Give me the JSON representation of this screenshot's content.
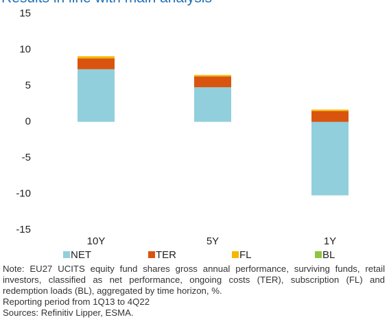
{
  "chart_data": {
    "type": "stacked_bar",
    "title": "Results in line with main analysis",
    "categories": [
      "10Y",
      "5Y",
      "1Y"
    ],
    "series": [
      {
        "name": "NET",
        "color": "#92cfdc",
        "values": [
          7.3,
          4.8,
          -10.2
        ]
      },
      {
        "name": "TER",
        "color": "#d9540f",
        "values": [
          1.5,
          1.5,
          1.5
        ]
      },
      {
        "name": "FL",
        "color": "#f5b800",
        "values": [
          0.3,
          0.2,
          0.2
        ]
      },
      {
        "name": "BL",
        "color": "#8dc63f",
        "values": [
          0,
          0,
          0
        ]
      }
    ],
    "ylim": [
      -15,
      15
    ],
    "yticks": [
      -15,
      -10,
      -5,
      0,
      5,
      10,
      15
    ],
    "grid": false,
    "legend": "bottom",
    "note": "Note: EU27 UCITS equity fund shares gross annual performance, surviving funds, retail investors, classified as net performance, ongoing costs (TER), subscription (FL) and redemption loads (BL), aggregated by time horizon, %.",
    "period": "Reporting period from 1Q13 to 4Q22",
    "sources": "Sources: Refinitiv Lipper, ESMA."
  }
}
